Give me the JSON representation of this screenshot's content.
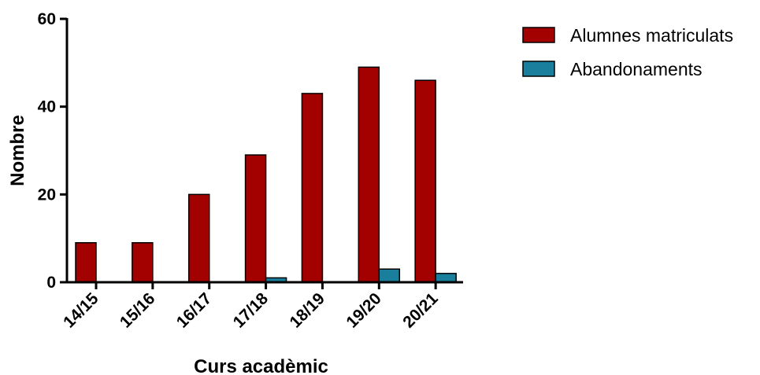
{
  "chart_data": {
    "type": "bar",
    "title": "",
    "xlabel": "Curs acadèmic",
    "ylabel": "Nombre",
    "ylim": [
      0,
      60
    ],
    "yticks": [
      0,
      20,
      40,
      60
    ],
    "categories": [
      "14/15",
      "15/16",
      "16/17",
      "17/18",
      "18/19",
      "19/20",
      "20/21"
    ],
    "series": [
      {
        "name": "Alumnes matriculats",
        "color": "#a30000",
        "values": [
          9,
          9,
          20,
          29,
          43,
          49,
          46
        ]
      },
      {
        "name": "Abandonaments",
        "color": "#1a7f9c",
        "values": [
          0,
          0,
          0,
          1,
          0,
          3,
          2
        ]
      }
    ],
    "legend_position": "top-right",
    "grid": false
  }
}
